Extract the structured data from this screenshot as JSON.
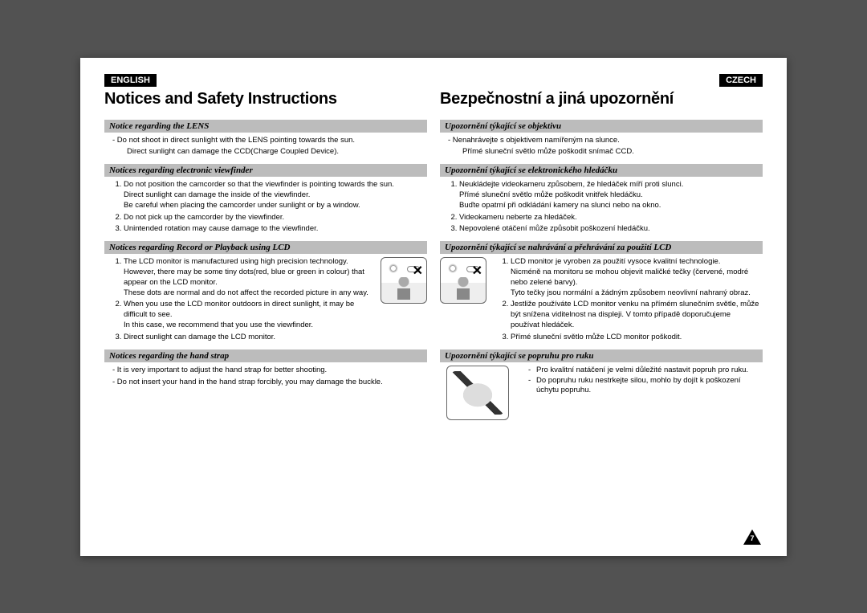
{
  "page_number": "7",
  "left": {
    "lang": "ENGLISH",
    "title": "Notices and Safety Instructions",
    "s1": {
      "heading": "Notice regarding the LENS",
      "p1": "-  Do not shoot in direct sunlight with the LENS pointing towards the sun.",
      "p2": "Direct sunlight can damage the CCD(Charge Coupled Device)."
    },
    "s2": {
      "heading": "Notices regarding electronic viewfinder",
      "li1a": "Do not position the camcorder so that the viewfinder is pointing towards the sun.",
      "li1b": "Direct sunlight can damage the inside of the viewfinder.",
      "li1c": "Be careful when placing the camcorder under sunlight or by a window.",
      "li2": "Do not pick up the camcorder by the viewfinder.",
      "li3": "Unintended rotation may cause damage to the viewfinder."
    },
    "s3": {
      "heading": "Notices regarding Record or Playback using LCD",
      "li1a": "The LCD monitor is manufactured using high precision technology. However, there may be some tiny dots(red, blue or green in colour) that appear on the LCD monitor.",
      "li1b": "These dots are normal and do not affect the recorded picture in any way.",
      "li2a": "When you use the LCD monitor outdoors in direct sunlight, it may be difficult to see.",
      "li2b": "In this case, we recommend that you use the viewfinder.",
      "li3": "Direct sunlight can damage the LCD monitor."
    },
    "s4": {
      "heading": "Notices regarding the hand strap",
      "p1": "-  It is very important to adjust the hand strap for better shooting.",
      "p2": "-  Do not insert your hand in the hand strap forcibly, you may damage the buckle."
    }
  },
  "right": {
    "lang": "CZECH",
    "title": "Bezpečnostní a jiná upozornění",
    "s1": {
      "heading": "Upozornění týkající se objektivu",
      "p1": "-  Nenahrávejte s objektivem namířeným na slunce.",
      "p2": "Přímé sluneční světlo může poškodit snímač CCD."
    },
    "s2": {
      "heading": "Upozornění týkající se elektronického hledáčku",
      "li1a": "Neukládejte videokameru způsobem, že hledáček míří proti slunci.",
      "li1b": "Přímé sluneční světlo může poškodit vnitřek hledáčku.",
      "li1c": "Buďte opatrní při odkládání kamery na slunci nebo na okno.",
      "li2": "Videokameru neberte za hledáček.",
      "li3": "Nepovolené otáčení může způsobit poškození hledáčku."
    },
    "s3": {
      "heading": "Upozornění týkající se nahrávání a přehrávání za použití LCD",
      "li1a": "LCD monitor je vyroben za použití vysoce kvalitní technologie.",
      "li1b": "Nicméně na monitoru se mohou objevit maličké tečky (červené, modré nebo zelené barvy).",
      "li1c": "Tyto tečky jsou normální a žádným způsobem neovlivní nahraný obraz.",
      "li2": "Jestliže používáte LCD monitor venku na přímém slunečním světle, může být snížena viditelnost na displeji. V tomto případě doporučujeme používat hledáček.",
      "li3": "Přímé sluneční světlo může LCD monitor poškodit."
    },
    "s4": {
      "heading": "Upozornění týkající se popruhu pro ruku",
      "p1": "Pro kvalitní natáčení je velmi důležité nastavit popruh pro ruku.",
      "p2": "Do popruhu ruku nestrkejte silou, mohlo by dojít k poškození úchytu popruhu."
    }
  }
}
